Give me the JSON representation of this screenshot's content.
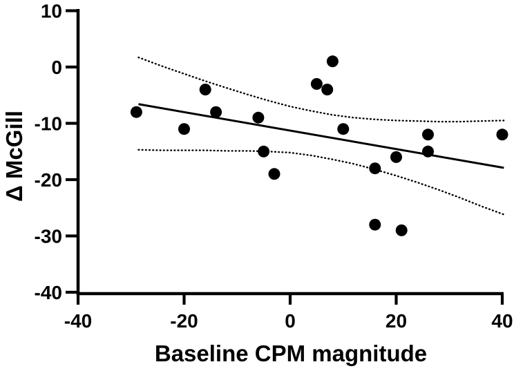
{
  "chart_data": {
    "type": "scatter",
    "title": "",
    "xlabel": "Baseline CPM magnitude",
    "ylabel": "Δ McGill",
    "xlim": [
      -40,
      40
    ],
    "ylim": [
      -40,
      10
    ],
    "x_ticks": [
      "-40",
      "-20",
      "0",
      "20",
      "40"
    ],
    "x_tick_values": [
      -40,
      -20,
      0,
      20,
      40
    ],
    "y_ticks": [
      "10",
      "0",
      "-10",
      "-20",
      "-30",
      "-40"
    ],
    "y_tick_values": [
      10,
      0,
      -10,
      -20,
      -30,
      -40
    ],
    "grid": false,
    "legend": "none",
    "points": [
      [
        -29,
        -8
      ],
      [
        -20,
        -11
      ],
      [
        -16,
        -4
      ],
      [
        -14,
        -8
      ],
      [
        -6,
        -9
      ],
      [
        -5,
        -15
      ],
      [
        -3,
        -19
      ],
      [
        5,
        -3
      ],
      [
        7,
        -4
      ],
      [
        8,
        1
      ],
      [
        10,
        -11
      ],
      [
        16,
        -18
      ],
      [
        16,
        -28
      ],
      [
        20,
        -16
      ],
      [
        21,
        -29
      ],
      [
        26,
        -12
      ],
      [
        26,
        -15
      ],
      [
        40,
        -12
      ]
    ],
    "regression_line": {
      "x1": -28.6,
      "y1": -6.6,
      "x2": 40.3,
      "y2": -17.9
    },
    "ci_upper": [
      [
        -28.6,
        1.7
      ],
      [
        -24,
        0.1
      ],
      [
        -20,
        -1.2
      ],
      [
        -16,
        -2.5
      ],
      [
        -12,
        -3.7
      ],
      [
        -8,
        -4.9
      ],
      [
        -4,
        -6.0
      ],
      [
        0,
        -7.0
      ],
      [
        4,
        -7.8
      ],
      [
        8,
        -8.5
      ],
      [
        12,
        -9.0
      ],
      [
        16,
        -9.3
      ],
      [
        20,
        -9.5
      ],
      [
        24,
        -9.6
      ],
      [
        28,
        -9.7
      ],
      [
        32,
        -9.7
      ],
      [
        36,
        -9.6
      ],
      [
        40.3,
        -9.5
      ]
    ],
    "ci_lower": [
      [
        -28.6,
        -14.7
      ],
      [
        -24,
        -14.8
      ],
      [
        -20,
        -14.8
      ],
      [
        -16,
        -14.8
      ],
      [
        -12,
        -14.9
      ],
      [
        -8,
        -14.9
      ],
      [
        -4,
        -15.0
      ],
      [
        0,
        -15.2
      ],
      [
        4,
        -15.7
      ],
      [
        8,
        -16.4
      ],
      [
        12,
        -17.2
      ],
      [
        16,
        -18.2
      ],
      [
        20,
        -19.3
      ],
      [
        24,
        -20.5
      ],
      [
        28,
        -21.8
      ],
      [
        32,
        -23.2
      ],
      [
        36,
        -24.7
      ],
      [
        40.3,
        -26.2
      ]
    ],
    "colors": {
      "points": "#000000",
      "regression_line": "#000000",
      "ci_band": "#000000",
      "axis": "#000000",
      "background": "#ffffff"
    },
    "point_radius_px": 8.5
  }
}
